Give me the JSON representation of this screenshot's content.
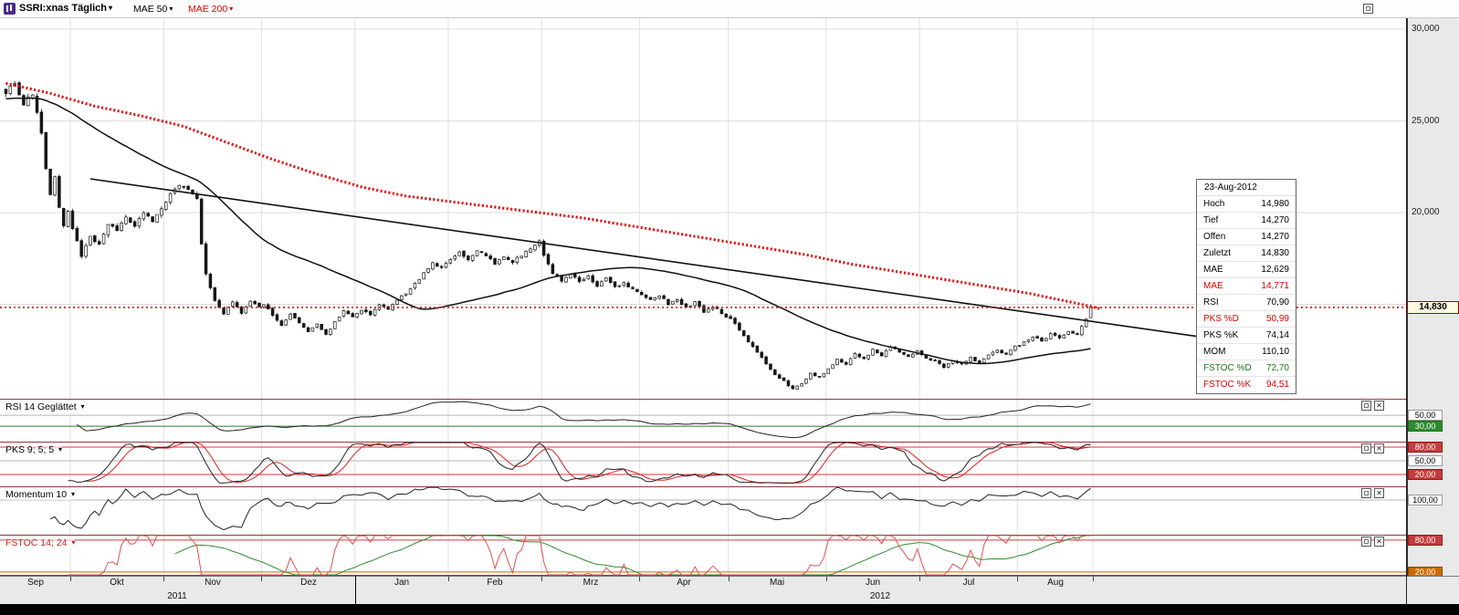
{
  "toolbar": {
    "symbol_label": "SSRI:xnas Täglich",
    "mae50_label": "MAE 50",
    "mae200_label": "MAE 200"
  },
  "icons": {
    "caret_down": "▾",
    "close": "✕"
  },
  "price_axis": {
    "labels": [
      {
        "text": "30,000",
        "price": 30000
      },
      {
        "text": "25,000",
        "price": 25000
      },
      {
        "text": "20,000",
        "price": 20000
      }
    ],
    "last_price": {
      "text": "14,830",
      "price": 14830
    }
  },
  "tooltip": {
    "date": "23-Aug-2012",
    "rows": [
      {
        "label": "Hoch",
        "value": "14,980",
        "color": "#000000"
      },
      {
        "label": "Tief",
        "value": "14,270",
        "color": "#000000"
      },
      {
        "label": "Offen",
        "value": "14,270",
        "color": "#000000"
      },
      {
        "label": "Zuletzt",
        "value": "14,830",
        "color": "#000000"
      },
      {
        "label": "MAE",
        "value": "12,629",
        "color": "#000000"
      },
      {
        "label": "MAE",
        "value": "14,771",
        "color": "#dd0000"
      },
      {
        "label": "RSI",
        "value": "70,90",
        "color": "#000000"
      },
      {
        "label": "PKS %D",
        "value": "50,99",
        "color": "#dd0000"
      },
      {
        "label": "PKS %K",
        "value": "74,14",
        "color": "#000000"
      },
      {
        "label": "MOM",
        "value": "110,10",
        "color": "#000000"
      },
      {
        "label": "FSTOC %D",
        "value": "72,70",
        "color": "#1e7a1e"
      },
      {
        "label": "FSTOC %K",
        "value": "94,51",
        "color": "#dd0000"
      }
    ]
  },
  "time_axis": {
    "months": [
      {
        "label": "Sep",
        "days": 15
      },
      {
        "label": "Okt",
        "days": 21
      },
      {
        "label": "Nov",
        "days": 22
      },
      {
        "label": "Dez",
        "days": 21
      },
      {
        "label": "Jan",
        "days": 21
      },
      {
        "label": "Feb",
        "days": 21
      },
      {
        "label": "Mrz",
        "days": 22
      },
      {
        "label": "Apr",
        "days": 20
      },
      {
        "label": "Mai",
        "days": 22
      },
      {
        "label": "Jun",
        "days": 21
      },
      {
        "label": "Jul",
        "days": 22
      },
      {
        "label": "Aug",
        "days": 17
      }
    ],
    "years": [
      {
        "label": "2011",
        "month_span": [
          0,
          3
        ]
      },
      {
        "label": "2012",
        "month_span": [
          4,
          11
        ]
      }
    ]
  },
  "chart_data": {
    "type": "candlestick",
    "title": "SSRI:xnas Täglich",
    "instrument": "SSRI:xnas",
    "interval": "Täglich",
    "total_days": 245,
    "seed": 7,
    "ylim": [
      10000,
      30600
    ],
    "y_ticks": [
      30000,
      25000,
      20000,
      15000
    ],
    "last_candle": {
      "date": "23-Aug-2012",
      "open": 14270,
      "high": 14980,
      "low": 14270,
      "close": 14830
    },
    "overlays": [
      {
        "name": "MAE 50",
        "color": "#111111",
        "last_value": 12629
      },
      {
        "name": "MAE 200",
        "color": "#e60000",
        "last_value": 14771
      }
    ],
    "mae50_prefill": 26200,
    "close_anchors": [
      [
        0,
        26600
      ],
      [
        2,
        27100
      ],
      [
        4,
        25900
      ],
      [
        6,
        26500
      ],
      [
        8,
        24300
      ],
      [
        9,
        22300
      ],
      [
        10,
        21000
      ],
      [
        11,
        21900
      ],
      [
        12,
        20200
      ],
      [
        13,
        19300
      ],
      [
        14,
        20100
      ],
      [
        15,
        19200
      ],
      [
        17,
        17600
      ],
      [
        19,
        18700
      ],
      [
        21,
        18200
      ],
      [
        23,
        19400
      ],
      [
        25,
        19000
      ],
      [
        27,
        19700
      ],
      [
        29,
        19200
      ],
      [
        31,
        20000
      ],
      [
        33,
        19500
      ],
      [
        35,
        20300
      ],
      [
        37,
        21000
      ],
      [
        39,
        21500
      ],
      [
        41,
        21200
      ],
      [
        43,
        20700
      ],
      [
        44,
        18300
      ],
      [
        45,
        16600
      ],
      [
        47,
        15200
      ],
      [
        49,
        14500
      ],
      [
        51,
        15100
      ],
      [
        53,
        14500
      ],
      [
        55,
        15200
      ],
      [
        57,
        14800
      ],
      [
        58,
        15000
      ],
      [
        60,
        14400
      ],
      [
        62,
        13900
      ],
      [
        64,
        14500
      ],
      [
        66,
        14000
      ],
      [
        68,
        13500
      ],
      [
        70,
        13900
      ],
      [
        72,
        13300
      ],
      [
        74,
        14100
      ],
      [
        76,
        14600
      ],
      [
        78,
        14300
      ],
      [
        80,
        14700
      ],
      [
        82,
        14400
      ],
      [
        84,
        15000
      ],
      [
        86,
        14700
      ],
      [
        88,
        15200
      ],
      [
        90,
        15600
      ],
      [
        92,
        16100
      ],
      [
        94,
        16700
      ],
      [
        96,
        17200
      ],
      [
        98,
        17000
      ],
      [
        100,
        17400
      ],
      [
        102,
        17800
      ],
      [
        104,
        17500
      ],
      [
        106,
        17900
      ],
      [
        108,
        17600
      ],
      [
        110,
        17200
      ],
      [
        112,
        17600
      ],
      [
        114,
        17300
      ],
      [
        116,
        17700
      ],
      [
        118,
        18100
      ],
      [
        120,
        18400
      ],
      [
        121,
        17600
      ],
      [
        123,
        16700
      ],
      [
        125,
        16300
      ],
      [
        127,
        16700
      ],
      [
        129,
        16200
      ],
      [
        131,
        16500
      ],
      [
        133,
        16000
      ],
      [
        135,
        16400
      ],
      [
        137,
        15900
      ],
      [
        139,
        16200
      ],
      [
        141,
        15800
      ],
      [
        143,
        15500
      ],
      [
        145,
        15200
      ],
      [
        147,
        15500
      ],
      [
        149,
        15000
      ],
      [
        151,
        15300
      ],
      [
        153,
        14800
      ],
      [
        155,
        15100
      ],
      [
        157,
        14600
      ],
      [
        159,
        14900
      ],
      [
        161,
        14500
      ],
      [
        163,
        14200
      ],
      [
        165,
        13600
      ],
      [
        167,
        13000
      ],
      [
        169,
        12400
      ],
      [
        171,
        11800
      ],
      [
        173,
        11200
      ],
      [
        175,
        10800
      ],
      [
        177,
        10400
      ],
      [
        179,
        10700
      ],
      [
        181,
        11200
      ],
      [
        183,
        11000
      ],
      [
        185,
        11500
      ],
      [
        187,
        12000
      ],
      [
        189,
        11700
      ],
      [
        191,
        12300
      ],
      [
        193,
        12000
      ],
      [
        195,
        12500
      ],
      [
        197,
        12200
      ],
      [
        199,
        12700
      ],
      [
        201,
        12400
      ],
      [
        203,
        12100
      ],
      [
        205,
        12400
      ],
      [
        207,
        12100
      ],
      [
        209,
        11900
      ],
      [
        211,
        11600
      ],
      [
        213,
        11900
      ],
      [
        215,
        11700
      ],
      [
        217,
        12100
      ],
      [
        219,
        11800
      ],
      [
        221,
        12200
      ],
      [
        223,
        12500
      ],
      [
        225,
        12300
      ],
      [
        227,
        12700
      ],
      [
        229,
        12900
      ],
      [
        231,
        13200
      ],
      [
        233,
        13000
      ],
      [
        235,
        13400
      ],
      [
        237,
        13200
      ],
      [
        239,
        13500
      ],
      [
        241,
        13400
      ],
      [
        242,
        13800
      ],
      [
        243,
        14200
      ],
      [
        244,
        14830
      ]
    ],
    "mae200_anchors": [
      [
        0,
        27050
      ],
      [
        10,
        26500
      ],
      [
        20,
        25800
      ],
      [
        30,
        25300
      ],
      [
        40,
        24700
      ],
      [
        50,
        23800
      ],
      [
        60,
        22900
      ],
      [
        70,
        22100
      ],
      [
        80,
        21400
      ],
      [
        90,
        20900
      ],
      [
        100,
        20600
      ],
      [
        110,
        20300
      ],
      [
        120,
        20000
      ],
      [
        130,
        19700
      ],
      [
        140,
        19300
      ],
      [
        150,
        18900
      ],
      [
        160,
        18500
      ],
      [
        170,
        18100
      ],
      [
        180,
        17700
      ],
      [
        190,
        17200
      ],
      [
        200,
        16800
      ],
      [
        210,
        16400
      ],
      [
        220,
        16000
      ],
      [
        230,
        15600
      ],
      [
        240,
        15100
      ],
      [
        246,
        14771
      ]
    ],
    "trendline": {
      "t1": 19,
      "p1": 21840,
      "t2": 268,
      "p2": 13250
    },
    "indicator_last_values": {
      "RSI": 70.9,
      "PKS_D": 50.99,
      "PKS_K": 74.14,
      "MOM": 110.1,
      "FSTOC_D": 72.7,
      "FSTOC_K": 94.51
    },
    "indicator_panels": [
      {
        "id": "rsi",
        "title": "RSI 14 Geglättet",
        "title_color": "#000000",
        "range": [
          2,
          80
        ],
        "params": {
          "period": 14,
          "smoothing": 5
        },
        "ref_lines": [
          {
            "v": 50,
            "color": "#b5b5b5"
          },
          {
            "v": 30,
            "color": "#2e7d2e"
          }
        ],
        "labels": [
          {
            "text": "50,00",
            "v": 50,
            "bg": "#ffffff",
            "fg": "#000000",
            "border": "#999999"
          },
          {
            "text": "30,00",
            "v": 30,
            "bg": "#2e8b2e",
            "fg": "#ffffff",
            "border": "#1e6b1e"
          }
        ]
      },
      {
        "id": "pks",
        "title": "PKS 9; 5; 5",
        "title_color": "#000000",
        "range": [
          -6,
          92
        ],
        "params": {
          "k": 9,
          "slow": 5,
          "d": 5
        },
        "ref_lines": [
          {
            "v": 80,
            "color": "#cc3b3b"
          },
          {
            "v": 50,
            "color": "#b5b5b5"
          },
          {
            "v": 20,
            "color": "#cc3b3b"
          }
        ],
        "labels": [
          {
            "text": "80,00",
            "v": 80,
            "bg": "#c63c3c",
            "fg": "#ffffff",
            "border": "#8c1c1c"
          },
          {
            "text": "50,00",
            "v": 50,
            "bg": "#ffffff",
            "fg": "#000000",
            "border": "#999999"
          },
          {
            "text": "20,00",
            "v": 20,
            "bg": "#c63c3c",
            "fg": "#ffffff",
            "border": "#8c1c1c"
          }
        ]
      },
      {
        "id": "mom",
        "title": "Momentum 10",
        "title_color": "#000000",
        "range": [
          62,
          115
        ],
        "params": {
          "period": 10
        },
        "ref_lines": [
          {
            "v": 100,
            "color": "#b5b5b5"
          }
        ],
        "labels": [
          {
            "text": "100,00",
            "v": 100,
            "bg": "#ffffff",
            "fg": "#000000",
            "border": "#999999"
          }
        ]
      },
      {
        "id": "fstoc",
        "title": "FSTOC 14; 24",
        "title_color": "#cc2222",
        "range": [
          13,
          90
        ],
        "params": {
          "k": 14,
          "d": 24
        },
        "ref_lines": [
          {
            "v": 80,
            "color": "#cc3b3b"
          },
          {
            "v": 20,
            "color": "#cc6a00"
          }
        ],
        "labels": [
          {
            "text": "80,00",
            "v": 80,
            "bg": "#c63c3c",
            "fg": "#ffffff",
            "border": "#8c1c1c"
          },
          {
            "text": "20,00",
            "v": 20,
            "bg": "#cc6a00",
            "fg": "#ffffff",
            "border": "#8c4500"
          }
        ]
      }
    ]
  }
}
